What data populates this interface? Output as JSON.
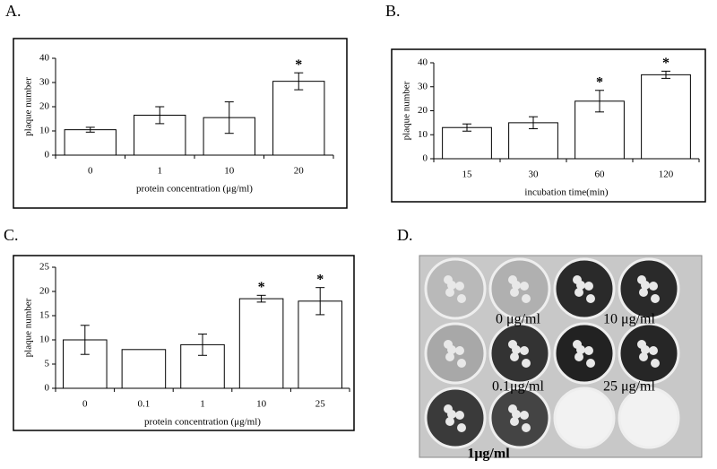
{
  "chart_data": [
    {
      "type": "bar",
      "title": "A.",
      "x_label": "protein concentration (μg/ml)",
      "y_label": "plaque number",
      "categories": [
        "0",
        "1",
        "10",
        "20"
      ],
      "values": [
        10.5,
        16.5,
        15.5,
        30.5
      ],
      "errors": [
        1,
        3.5,
        6.5,
        3.5
      ],
      "annotations": [
        null,
        null,
        null,
        "*"
      ],
      "color": "#ffffff",
      "ylim": [
        0,
        40
      ],
      "yticks": [
        0,
        10,
        20,
        30,
        40
      ]
    },
    {
      "type": "bar",
      "title": "B.",
      "x_label": "incubation time(min)",
      "y_label": "plaque number",
      "categories": [
        "15",
        "30",
        "60",
        "120"
      ],
      "values": [
        13,
        15,
        24,
        35
      ],
      "errors": [
        1.5,
        2.5,
        4.5,
        1.5
      ],
      "annotations": [
        null,
        null,
        "*",
        "*"
      ],
      "color": "#ffffff",
      "ylim": [
        0,
        40
      ],
      "yticks": [
        0,
        10,
        20,
        30,
        40
      ]
    },
    {
      "type": "bar",
      "title": "C.",
      "x_label": "protein concentration (μg/ml)",
      "y_label": "plaque number",
      "categories": [
        "0",
        "0.1",
        "1",
        "10",
        "25"
      ],
      "values": [
        10,
        8,
        9,
        18.5,
        18
      ],
      "errors": [
        3,
        null,
        2.2,
        0.7,
        2.8
      ],
      "annotations": [
        null,
        null,
        null,
        "*",
        "*"
      ],
      "color": "#ffffff",
      "ylim": [
        0,
        25
      ],
      "yticks": [
        0,
        5,
        10,
        15,
        20,
        25
      ]
    }
  ],
  "panel_d": {
    "title": "D.",
    "labels": [
      "0 μg/ml",
      "10 μg/ml",
      "0.1μg/ml",
      "25 μg/ml",
      "1μg/ml"
    ]
  }
}
